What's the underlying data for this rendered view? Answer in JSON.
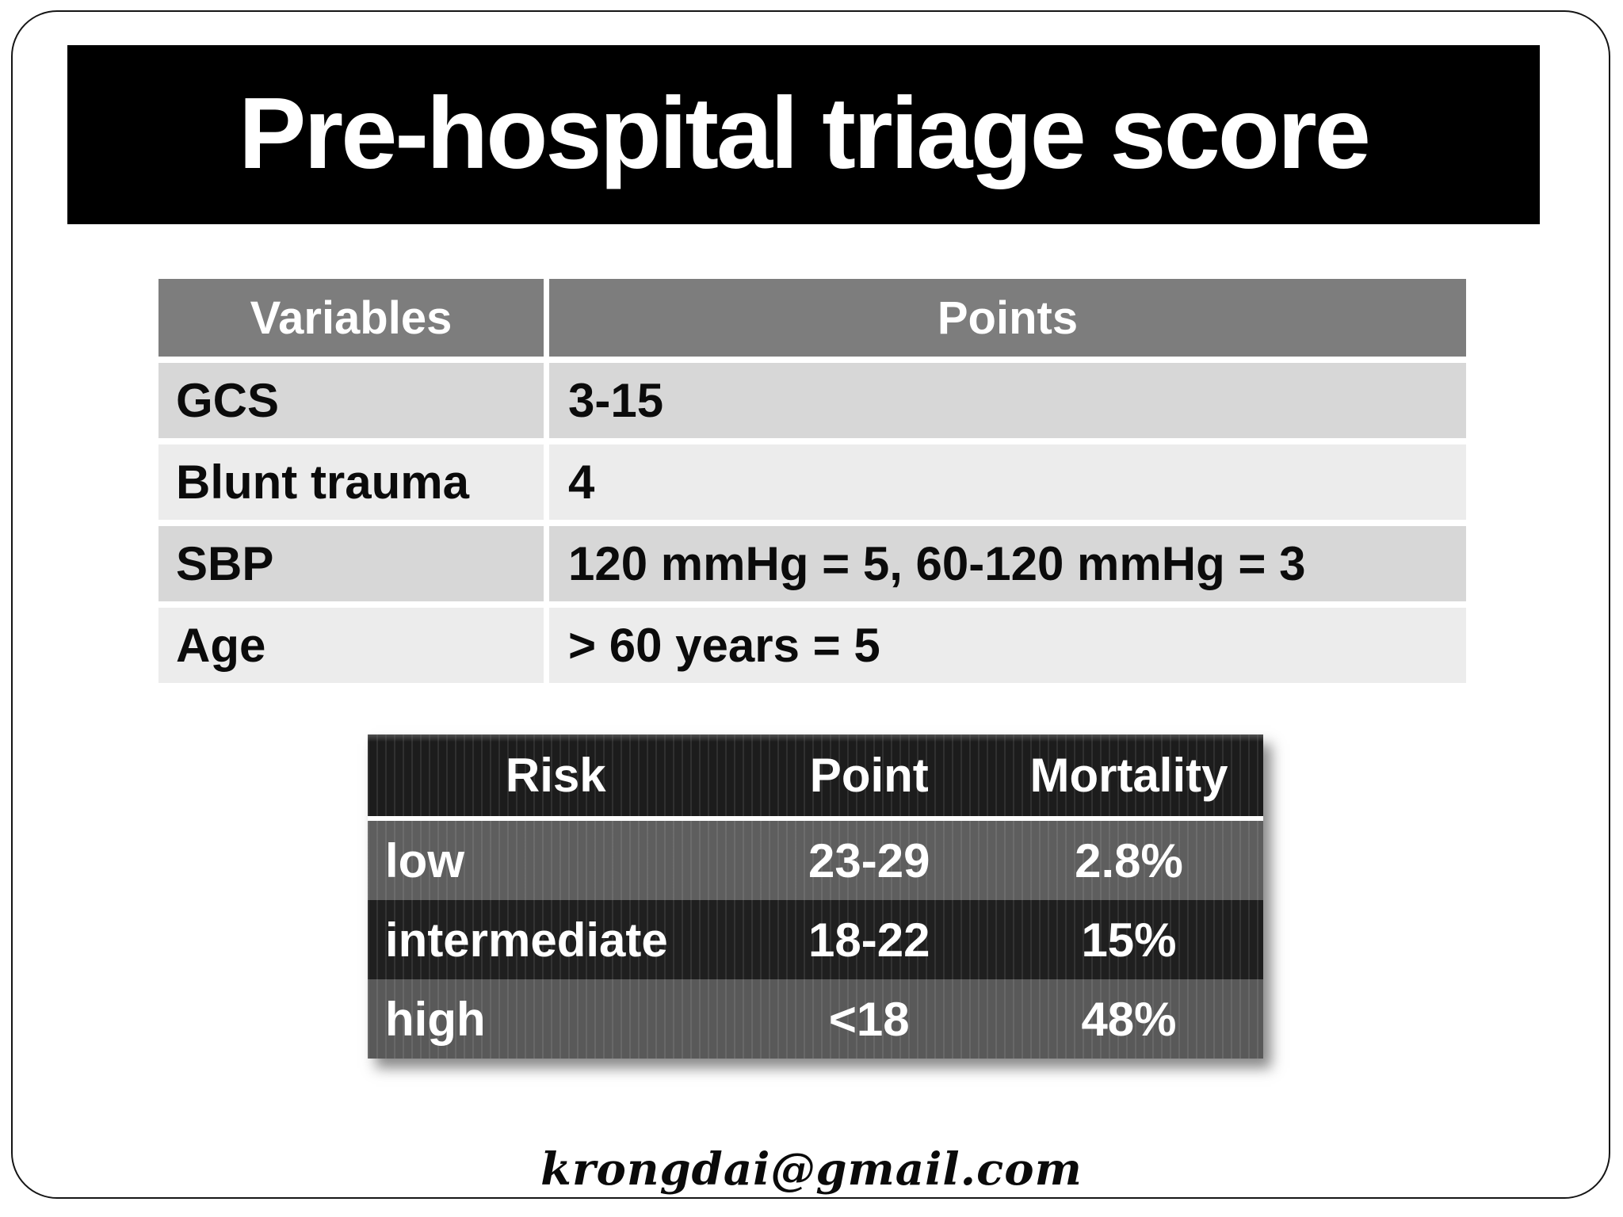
{
  "slide": {
    "title": "Pre-hospital triage score",
    "footer_email": "krongdai@gmail.com"
  },
  "variables_table": {
    "headers": [
      "Variables",
      "Points"
    ],
    "rows": [
      {
        "variable": "GCS",
        "points": "3-15"
      },
      {
        "variable": "Blunt trauma",
        "points": "4"
      },
      {
        "variable": "SBP",
        "points": "120 mmHg = 5, 60-120 mmHg = 3"
      },
      {
        "variable": "Age",
        "points": "> 60 years = 5"
      }
    ]
  },
  "risk_table": {
    "headers": [
      "Risk",
      "Point",
      "Mortality"
    ],
    "rows": [
      {
        "risk": "low",
        "point": "23-29",
        "mortality": "2.8%"
      },
      {
        "risk": "intermediate",
        "point": "18-22",
        "mortality": "15%"
      },
      {
        "risk": "high",
        "point": "<18",
        "mortality": "48%"
      }
    ]
  },
  "colors": {
    "title-bg": "#000000",
    "title-fg": "#ffffff",
    "header-gray": "#7d7d7d",
    "row-dark": "#d7d7d7",
    "row-light": "#ececec",
    "dark-header": "#1c1c1c",
    "dark-row-gray": "#5e5e5e",
    "dark-row-black": "#1f1f1f",
    "dark-row-gray2": "#595959"
  }
}
